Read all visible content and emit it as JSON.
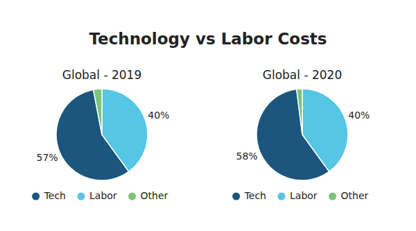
{
  "title": "Technology vs Labor Costs",
  "chart_data": [
    {
      "type": "pie",
      "title": "Global - 2019",
      "categories": [
        "Tech",
        "Labor",
        "Other"
      ],
      "values": [
        57,
        40,
        3
      ],
      "value_labels": [
        "57%",
        "40%",
        null
      ],
      "colors": [
        "#1c557d",
        "#55c6e3",
        "#7cc47a"
      ],
      "data_labels": true,
      "legend": "bottom"
    },
    {
      "type": "pie",
      "title": "Global - 2020",
      "categories": [
        "Tech",
        "Labor",
        "Other"
      ],
      "values": [
        58,
        40,
        2
      ],
      "value_labels": [
        "58%",
        "40%",
        null
      ],
      "colors": [
        "#1c557d",
        "#55c6e3",
        "#7cc47a"
      ],
      "data_labels": true,
      "legend": "bottom"
    }
  ]
}
